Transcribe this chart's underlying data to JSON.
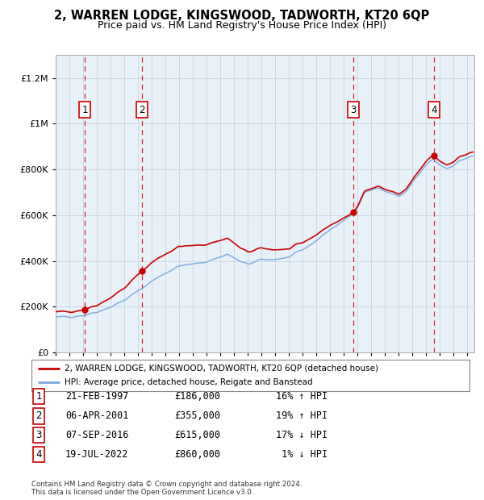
{
  "title": "2, WARREN LODGE, KINGSWOOD, TADWORTH, KT20 6QP",
  "subtitle": "Price paid vs. HM Land Registry's House Price Index (HPI)",
  "title_fontsize": 10.5,
  "subtitle_fontsize": 9,
  "property_label": "2, WARREN LODGE, KINGSWOOD, TADWORTH, KT20 6QP (detached house)",
  "hpi_label": "HPI: Average price, detached house, Reigate and Banstead",
  "property_color": "#cc0000",
  "hpi_color": "#7aaadd",
  "plot_bg_color": "#e8f0f8",
  "transactions": [
    {
      "num": 1,
      "date": "21-FEB-1997",
      "price": 186000,
      "hpi_diff": "16% ↑ HPI",
      "year": 1997.13
    },
    {
      "num": 2,
      "date": "06-APR-2001",
      "price": 355000,
      "hpi_diff": "19% ↑ HPI",
      "year": 2001.27
    },
    {
      "num": 3,
      "date": "07-SEP-2016",
      "price": 615000,
      "hpi_diff": "17% ↓ HPI",
      "year": 2016.68
    },
    {
      "num": 4,
      "date": "19-JUL-2022",
      "price": 860000,
      "hpi_diff": "1% ↓ HPI",
      "year": 2022.55
    }
  ],
  "footnote": "Contains HM Land Registry data © Crown copyright and database right 2024.\nThis data is licensed under the Open Government Licence v3.0.",
  "ylim": [
    0,
    1300000
  ],
  "yticks": [
    0,
    200000,
    400000,
    600000,
    800000,
    1000000,
    1200000
  ],
  "ytick_labels": [
    "£0",
    "£200K",
    "£400K",
    "£600K",
    "£800K",
    "£1M",
    "£1.2M"
  ],
  "xmin": 1995.0,
  "xmax": 2025.5,
  "hpi_anchors": [
    [
      1995.0,
      152000
    ],
    [
      1996.0,
      158000
    ],
    [
      1997.0,
      163000
    ],
    [
      1998.0,
      178000
    ],
    [
      1999.0,
      200000
    ],
    [
      2000.0,
      228000
    ],
    [
      2001.0,
      268000
    ],
    [
      2002.0,
      312000
    ],
    [
      2003.0,
      348000
    ],
    [
      2004.0,
      378000
    ],
    [
      2005.0,
      385000
    ],
    [
      2006.0,
      398000
    ],
    [
      2007.0,
      418000
    ],
    [
      2007.5,
      430000
    ],
    [
      2008.5,
      395000
    ],
    [
      2009.0,
      385000
    ],
    [
      2010.0,
      405000
    ],
    [
      2011.0,
      408000
    ],
    [
      2012.0,
      415000
    ],
    [
      2013.0,
      448000
    ],
    [
      2014.0,
      490000
    ],
    [
      2015.0,
      538000
    ],
    [
      2016.0,
      575000
    ],
    [
      2016.5,
      600000
    ],
    [
      2017.0,
      640000
    ],
    [
      2017.5,
      700000
    ],
    [
      2018.0,
      710000
    ],
    [
      2018.5,
      718000
    ],
    [
      2019.0,
      705000
    ],
    [
      2019.5,
      695000
    ],
    [
      2020.0,
      680000
    ],
    [
      2020.5,
      700000
    ],
    [
      2021.0,
      740000
    ],
    [
      2021.5,
      780000
    ],
    [
      2022.0,
      820000
    ],
    [
      2022.5,
      845000
    ],
    [
      2023.0,
      820000
    ],
    [
      2023.5,
      805000
    ],
    [
      2024.0,
      820000
    ],
    [
      2024.5,
      840000
    ],
    [
      2025.3,
      855000
    ]
  ]
}
